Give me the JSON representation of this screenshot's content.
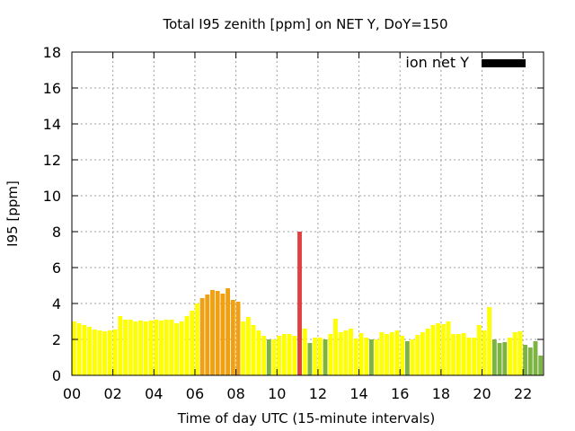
{
  "chart_data": {
    "type": "bar",
    "title": "Total I95 zenith [ppm] on NET Y, DoY=150",
    "xlabel": "Time of day UTC (15-minute intervals)",
    "ylabel": "I95 [ppm]",
    "xlim": [
      0,
      23
    ],
    "ylim": [
      0,
      18
    ],
    "xticks": [
      0,
      2,
      4,
      6,
      8,
      10,
      12,
      14,
      16,
      18,
      20,
      22
    ],
    "xtick_labels": [
      "00",
      "02",
      "04",
      "06",
      "08",
      "10",
      "12",
      "14",
      "16",
      "18",
      "20",
      "22"
    ],
    "yticks": [
      0,
      2,
      4,
      6,
      8,
      10,
      12,
      14,
      16,
      18
    ],
    "grid": true,
    "legend_position": "top-right",
    "interval_hours": 0.25,
    "series": [
      {
        "name": "ion net Y",
        "legend_color": "#000000",
        "values": [
          3.0,
          2.9,
          2.8,
          2.7,
          2.55,
          2.5,
          2.45,
          2.5,
          2.55,
          3.3,
          3.1,
          3.1,
          3.0,
          3.05,
          3.0,
          3.05,
          3.1,
          3.05,
          3.1,
          3.1,
          2.9,
          3.0,
          3.3,
          3.6,
          4.0,
          4.3,
          4.5,
          4.75,
          4.7,
          4.55,
          4.85,
          4.2,
          4.1,
          3.0,
          3.25,
          2.8,
          2.5,
          2.2,
          2.0,
          2.0,
          2.2,
          2.3,
          2.3,
          2.2,
          8.0,
          2.6,
          1.8,
          2.1,
          2.1,
          2.0,
          2.3,
          3.15,
          2.4,
          2.5,
          2.6,
          2.05,
          2.35,
          2.1,
          2.0,
          2.0,
          2.4,
          2.3,
          2.4,
          2.5,
          2.2,
          1.9,
          2.0,
          2.25,
          2.4,
          2.6,
          2.8,
          2.9,
          2.85,
          3.0,
          2.3,
          2.3,
          2.35,
          2.1,
          2.1,
          2.8,
          2.5,
          3.8,
          2.0,
          1.8,
          1.85,
          2.1,
          2.4,
          2.45,
          1.7,
          1.55,
          1.9,
          1.1
        ],
        "colors": [
          "#ffff00",
          "#ffff00",
          "#ffff00",
          "#ffff00",
          "#ffff00",
          "#ffff00",
          "#ffff00",
          "#ffff00",
          "#ffff00",
          "#ffff00",
          "#ffff00",
          "#ffff00",
          "#ffff00",
          "#ffff00",
          "#ffff00",
          "#ffff00",
          "#ffff00",
          "#ffff00",
          "#ffff00",
          "#ffff00",
          "#ffff00",
          "#ffff00",
          "#ffff00",
          "#ffff00",
          "#ffff00",
          "#f0a010",
          "#f0a010",
          "#f0a010",
          "#f0a010",
          "#f0a010",
          "#f0a010",
          "#f0a010",
          "#f0a010",
          "#ffff00",
          "#ffff00",
          "#ffff00",
          "#ffff00",
          "#ffff00",
          "#7cb342",
          "#ffff00",
          "#ffff00",
          "#ffff00",
          "#ffff00",
          "#ffff00",
          "#e04040",
          "#ffff00",
          "#7cb342",
          "#ffff00",
          "#ffff00",
          "#7cb342",
          "#ffff00",
          "#ffff00",
          "#ffff00",
          "#ffff00",
          "#ffff00",
          "#ffff00",
          "#ffff00",
          "#ffff00",
          "#7cb342",
          "#ffff00",
          "#ffff00",
          "#ffff00",
          "#ffff00",
          "#ffff00",
          "#ffff00",
          "#7cb342",
          "#ffff00",
          "#ffff00",
          "#ffff00",
          "#ffff00",
          "#ffff00",
          "#ffff00",
          "#ffff00",
          "#ffff00",
          "#ffff00",
          "#ffff00",
          "#ffff00",
          "#ffff00",
          "#ffff00",
          "#ffff00",
          "#ffff00",
          "#ffff00",
          "#7cb342",
          "#7cb342",
          "#7cb342",
          "#ffff00",
          "#ffff00",
          "#ffff00",
          "#7cb342",
          "#7cb342",
          "#7cb342",
          "#7cb342"
        ]
      }
    ]
  }
}
